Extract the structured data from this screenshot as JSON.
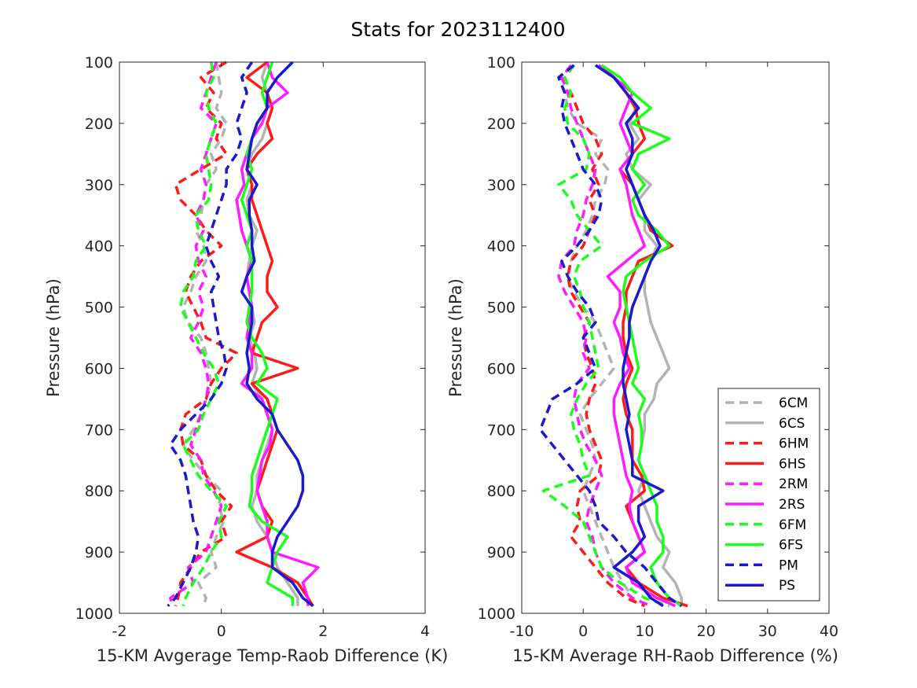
{
  "chart_data": {
    "title": "Stats for 2023112400",
    "legend_position": "bottom-right",
    "styles": {
      "6CM": {
        "color": "#b3b3b3",
        "dashed": true
      },
      "6CS": {
        "color": "#b3b3b3",
        "dashed": false
      },
      "6HM": {
        "color": "#ff1a1a",
        "dashed": true
      },
      "6HS": {
        "color": "#ff1a1a",
        "dashed": false
      },
      "2RM": {
        "color": "#ff1aff",
        "dashed": true
      },
      "2RS": {
        "color": "#ff1aff",
        "dashed": false
      },
      "6FM": {
        "color": "#1aff1a",
        "dashed": true
      },
      "6FS": {
        "color": "#1aff1a",
        "dashed": false
      },
      "PM": {
        "color": "#1a1acc",
        "dashed": true
      },
      "PS": {
        "color": "#1a1acc",
        "dashed": false
      }
    },
    "legend": [
      "6CM",
      "6CS",
      "6HM",
      "6HS",
      "2RM",
      "2RS",
      "6FM",
      "6FS",
      "PM",
      "PS"
    ],
    "panels": [
      {
        "type": "line",
        "xlabel": "15-KM Avgerage Temp-Raob Difference (K)",
        "ylabel": "Pressure (hPa)",
        "xlim": [
          -2,
          4
        ],
        "ylim": [
          1000,
          100
        ],
        "xticks": [
          -2,
          0,
          2,
          4
        ],
        "yticks": [
          100,
          200,
          300,
          400,
          500,
          600,
          700,
          800,
          900,
          1000
        ],
        "pressure_levels": [
          100,
          125,
          150,
          175,
          200,
          225,
          250,
          275,
          300,
          325,
          350,
          375,
          400,
          425,
          450,
          475,
          500,
          525,
          550,
          575,
          600,
          625,
          650,
          675,
          700,
          725,
          750,
          775,
          800,
          825,
          850,
          875,
          900,
          925,
          950,
          975,
          988
        ],
        "series": [
          {
            "name": "6CM",
            "values": [
              -0.1,
              -0.05,
              0.0,
              -0.1,
              0.1,
              0.0,
              -0.2,
              -0.1,
              -0.3,
              -0.35,
              -0.4,
              -0.5,
              -0.35,
              -0.3,
              -0.5,
              -0.6,
              -0.75,
              -0.65,
              -0.4,
              -0.3,
              -0.25,
              -0.2,
              -0.3,
              -0.4,
              -0.55,
              -0.75,
              -0.55,
              -0.3,
              0.0,
              -0.05,
              0.05,
              -0.1,
              -0.2,
              -0.1,
              -0.45,
              -0.3,
              -0.35
            ]
          },
          {
            "name": "6CS",
            "values": [
              0.9,
              0.8,
              0.9,
              1.0,
              0.9,
              0.8,
              0.6,
              0.5,
              0.6,
              0.5,
              0.55,
              0.7,
              0.6,
              0.55,
              0.5,
              0.55,
              0.6,
              0.65,
              0.55,
              0.65,
              0.7,
              0.6,
              0.8,
              0.9,
              1.0,
              0.9,
              0.8,
              0.7,
              0.7,
              0.6,
              0.7,
              0.9,
              1.0,
              1.1,
              1.3,
              1.5,
              1.5
            ]
          },
          {
            "name": "6HM",
            "values": [
              0.1,
              -0.4,
              -0.15,
              -0.3,
              0.0,
              -0.1,
              0.1,
              -0.4,
              -0.9,
              -0.8,
              -0.5,
              -0.3,
              0.0,
              -0.4,
              -0.6,
              -0.7,
              -0.55,
              -0.4,
              -0.3,
              0.3,
              0.0,
              -0.2,
              -0.3,
              -0.7,
              -0.8,
              -0.75,
              -0.4,
              -0.3,
              -0.1,
              0.2,
              0.0,
              0.1,
              -0.4,
              -0.6,
              -0.8,
              -0.85,
              -0.9
            ]
          },
          {
            "name": "6HS",
            "values": [
              0.9,
              0.5,
              0.9,
              1.0,
              0.9,
              1.0,
              0.7,
              0.5,
              0.6,
              0.6,
              0.7,
              0.8,
              0.9,
              1.0,
              0.9,
              0.9,
              1.1,
              0.8,
              0.7,
              0.6,
              1.5,
              0.6,
              0.9,
              1.0,
              1.1,
              1.0,
              0.9,
              0.8,
              0.7,
              0.8,
              1.0,
              0.9,
              0.3,
              1.0,
              1.5,
              1.7,
              1.8
            ]
          },
          {
            "name": "2RM",
            "values": [
              -0.1,
              -0.2,
              -0.3,
              -0.4,
              -0.1,
              -0.2,
              -0.3,
              -0.4,
              -0.3,
              -0.35,
              -0.5,
              -0.35,
              -0.5,
              -0.45,
              -0.3,
              -0.45,
              -0.35,
              -0.45,
              -0.6,
              -0.4,
              -0.3,
              -0.25,
              -0.3,
              -0.4,
              -0.5,
              -0.6,
              -0.4,
              -0.35,
              -0.15,
              0.0,
              -0.1,
              -0.2,
              -0.3,
              -0.65,
              -0.55,
              -1.0,
              -0.95
            ]
          },
          {
            "name": "2RS",
            "values": [
              0.9,
              1.0,
              1.3,
              0.9,
              0.8,
              0.6,
              0.5,
              0.4,
              0.45,
              0.3,
              0.35,
              0.4,
              0.5,
              0.6,
              0.5,
              0.55,
              0.6,
              0.55,
              0.5,
              0.6,
              0.6,
              0.4,
              0.8,
              0.9,
              1.0,
              0.95,
              0.8,
              0.75,
              0.7,
              0.8,
              0.9,
              0.9,
              1.0,
              1.9,
              1.6,
              1.7,
              1.7
            ]
          },
          {
            "name": "6FM",
            "values": [
              -0.2,
              -0.15,
              -0.3,
              -0.25,
              -0.1,
              -0.2,
              -0.3,
              -0.25,
              -0.2,
              -0.25,
              -0.5,
              -0.45,
              -0.3,
              -0.5,
              -0.55,
              -0.75,
              -0.8,
              -0.65,
              -0.5,
              -0.35,
              -0.15,
              -0.05,
              -0.2,
              -0.35,
              -0.45,
              -0.75,
              -0.6,
              -0.45,
              -0.2,
              0.1,
              -0.05,
              0.0,
              -0.2,
              -0.35,
              -0.55,
              -0.7,
              -0.75
            ]
          },
          {
            "name": "6FS",
            "values": [
              1.0,
              0.9,
              0.8,
              0.9,
              0.7,
              0.6,
              0.5,
              0.6,
              0.5,
              0.4,
              0.5,
              0.6,
              0.5,
              0.6,
              0.6,
              0.6,
              0.55,
              0.5,
              0.6,
              0.8,
              0.9,
              0.7,
              1.1,
              1.0,
              0.9,
              0.8,
              0.7,
              0.6,
              0.6,
              0.55,
              0.8,
              1.3,
              1.1,
              1.0,
              0.9,
              1.4,
              1.4
            ]
          },
          {
            "name": "PM",
            "values": [
              0.6,
              0.4,
              0.5,
              0.4,
              0.3,
              0.4,
              0.3,
              0.1,
              0.1,
              0.0,
              -0.1,
              -0.2,
              -0.3,
              -0.2,
              -0.05,
              -0.2,
              -0.15,
              -0.1,
              -0.05,
              0.05,
              0.1,
              0.0,
              -0.2,
              -0.5,
              -0.8,
              -1.0,
              -0.8,
              -0.7,
              -0.65,
              -0.6,
              -0.55,
              -0.45,
              -0.5,
              -0.6,
              -0.75,
              -0.9,
              -1.05
            ]
          },
          {
            "name": "PS",
            "values": [
              1.4,
              1.1,
              0.9,
              0.9,
              0.7,
              0.6,
              0.55,
              0.5,
              0.7,
              0.55,
              0.55,
              0.6,
              0.6,
              0.65,
              0.5,
              0.4,
              0.6,
              0.6,
              0.55,
              0.5,
              0.55,
              0.5,
              0.7,
              1.0,
              1.1,
              1.3,
              1.5,
              1.6,
              1.6,
              1.5,
              1.3,
              1.1,
              1.0,
              1.0,
              1.4,
              1.6,
              1.8
            ]
          }
        ]
      },
      {
        "type": "line",
        "xlabel": "15-KM Average RH-Raob Difference (%)",
        "ylabel": "Pressure (hPa)",
        "xlim": [
          -10,
          40
        ],
        "ylim": [
          1000,
          100
        ],
        "xticks": [
          -10,
          0,
          10,
          20,
          30,
          40
        ],
        "yticks": [
          100,
          200,
          300,
          400,
          500,
          600,
          700,
          800,
          900,
          1000
        ],
        "pressure_levels": [
          105,
          125,
          150,
          175,
          200,
          225,
          250,
          275,
          300,
          325,
          350,
          375,
          400,
          425,
          450,
          475,
          500,
          525,
          550,
          575,
          600,
          625,
          650,
          675,
          700,
          725,
          750,
          775,
          800,
          825,
          850,
          875,
          900,
          925,
          950,
          975,
          988
        ],
        "series": [
          {
            "name": "6CM",
            "values": [
              -1.5,
              -4.0,
              -3.0,
              -2.5,
              -1.0,
              3.0,
              2.0,
              4.0,
              3.5,
              2.0,
              1.5,
              0.5,
              -1.0,
              -2.0,
              -2.5,
              -1.5,
              0.0,
              2.0,
              3.0,
              4.0,
              5.0,
              3.0,
              1.0,
              -0.5,
              0.5,
              1.5,
              2.0,
              1.0,
              0.0,
              1.0,
              2.0,
              3.0,
              4.0,
              5.0,
              6.5,
              8.0,
              9.0
            ]
          },
          {
            "name": "6CS",
            "values": [
              3.0,
              5.0,
              7.0,
              8.5,
              7.5,
              9.0,
              7.0,
              8.0,
              11.0,
              9.0,
              10.0,
              10.0,
              12.0,
              11.0,
              10.0,
              10.0,
              10.5,
              11.0,
              12.0,
              13.0,
              14.0,
              12.0,
              11.5,
              10.0,
              10.0,
              9.5,
              9.0,
              10.0,
              9.0,
              10.0,
              11.0,
              12.0,
              14.0,
              13.0,
              15.0,
              16.0,
              16.0
            ]
          },
          {
            "name": "6HM",
            "values": [
              -1.5,
              -3.0,
              -2.0,
              -1.0,
              0.0,
              2.0,
              3.0,
              1.5,
              2.5,
              1.0,
              2.0,
              1.0,
              0.0,
              -2.0,
              -2.5,
              -2.0,
              -0.5,
              1.0,
              0.0,
              0.5,
              1.5,
              2.0,
              1.0,
              0.5,
              1.0,
              2.0,
              3.0,
              2.5,
              -0.5,
              -1.0,
              -0.5,
              -2.0,
              0.0,
              2.0,
              4.0,
              7.0,
              10.0
            ]
          },
          {
            "name": "6HS",
            "values": [
              2.5,
              5.0,
              7.0,
              8.5,
              9.0,
              10.0,
              8.0,
              6.0,
              8.0,
              9.0,
              10.0,
              11.0,
              14.5,
              9.0,
              8.0,
              7.0,
              7.0,
              6.5,
              6.5,
              7.0,
              8.0,
              7.0,
              6.5,
              7.0,
              8.0,
              8.0,
              8.0,
              9.5,
              10.0,
              7.0,
              8.0,
              9.0,
              10.0,
              7.0,
              9.0,
              13.0,
              17.0
            ]
          },
          {
            "name": "2RM",
            "values": [
              -2.0,
              -3.5,
              -2.5,
              -2.0,
              -1.0,
              0.0,
              1.0,
              2.0,
              1.5,
              0.5,
              0.0,
              -1.0,
              -1.5,
              -3.5,
              -4.0,
              -3.0,
              -1.5,
              0.0,
              0.5,
              0.0,
              1.0,
              -1.0,
              -1.5,
              -1.0,
              -0.5,
              0.5,
              2.0,
              3.0,
              2.0,
              1.0,
              0.5,
              1.5,
              2.0,
              3.0,
              5.0,
              8.0,
              11.0
            ]
          },
          {
            "name": "2RS",
            "values": [
              2.5,
              5.0,
              8.0,
              7.0,
              6.0,
              7.0,
              8.0,
              6.0,
              7.0,
              7.5,
              8.0,
              9.0,
              10.0,
              7.0,
              4.0,
              6.0,
              6.0,
              5.0,
              6.0,
              6.5,
              7.5,
              6.0,
              5.0,
              5.0,
              5.5,
              6.0,
              6.5,
              7.0,
              8.0,
              7.5,
              8.0,
              9.0,
              10.0,
              7.0,
              8.0,
              12.0,
              15.0
            ]
          },
          {
            "name": "6FM",
            "values": [
              -1.5,
              -3.0,
              -2.0,
              -3.0,
              -2.5,
              0.0,
              1.0,
              0.5,
              -4.0,
              -2.0,
              -1.0,
              1.0,
              3.0,
              -0.5,
              -1.5,
              -0.5,
              0.0,
              1.0,
              1.5,
              2.0,
              2.5,
              0.5,
              -1.0,
              -2.0,
              -1.5,
              -0.5,
              0.0,
              1.0,
              -6.5,
              -3.0,
              0.0,
              1.0,
              2.0,
              3.0,
              6.0,
              10.0,
              14.0
            ]
          },
          {
            "name": "6FS",
            "values": [
              3.0,
              6.0,
              8.0,
              11.0,
              8.0,
              14.0,
              9.0,
              8.0,
              10.0,
              8.0,
              9.0,
              12.0,
              14.0,
              10.0,
              7.0,
              6.5,
              7.0,
              7.5,
              8.0,
              8.5,
              9.0,
              8.0,
              10.0,
              9.0,
              9.5,
              9.5,
              9.0,
              10.0,
              11.0,
              12.0,
              12.0,
              13.0,
              13.0,
              11.0,
              12.0,
              14.0,
              16.0
            ]
          },
          {
            "name": "PM",
            "values": [
              -1.5,
              -4.0,
              -3.0,
              -3.5,
              -3.0,
              -2.0,
              -1.0,
              0.0,
              2.0,
              3.0,
              2.5,
              1.0,
              -1.0,
              -3.5,
              -2.5,
              -1.0,
              1.0,
              2.0,
              0.0,
              1.0,
              2.0,
              -1.0,
              -5.0,
              -6.0,
              -7.0,
              -5.0,
              -3.0,
              -1.0,
              1.0,
              2.0,
              2.5,
              5.0,
              7.0,
              10.0,
              12.0,
              14.0,
              16.0
            ]
          },
          {
            "name": "PS",
            "values": [
              2.0,
              5.0,
              7.0,
              9.0,
              7.0,
              8.0,
              8.0,
              7.0,
              8.0,
              9.0,
              10.0,
              11.5,
              12.5,
              11.0,
              10.0,
              9.0,
              8.0,
              7.5,
              7.5,
              7.0,
              6.5,
              6.5,
              7.0,
              7.5,
              7.0,
              7.5,
              8.0,
              8.0,
              13.0,
              9.0,
              9.0,
              10.0,
              8.0,
              5.0,
              9.0,
              11.0,
              13.0
            ]
          }
        ]
      }
    ]
  }
}
